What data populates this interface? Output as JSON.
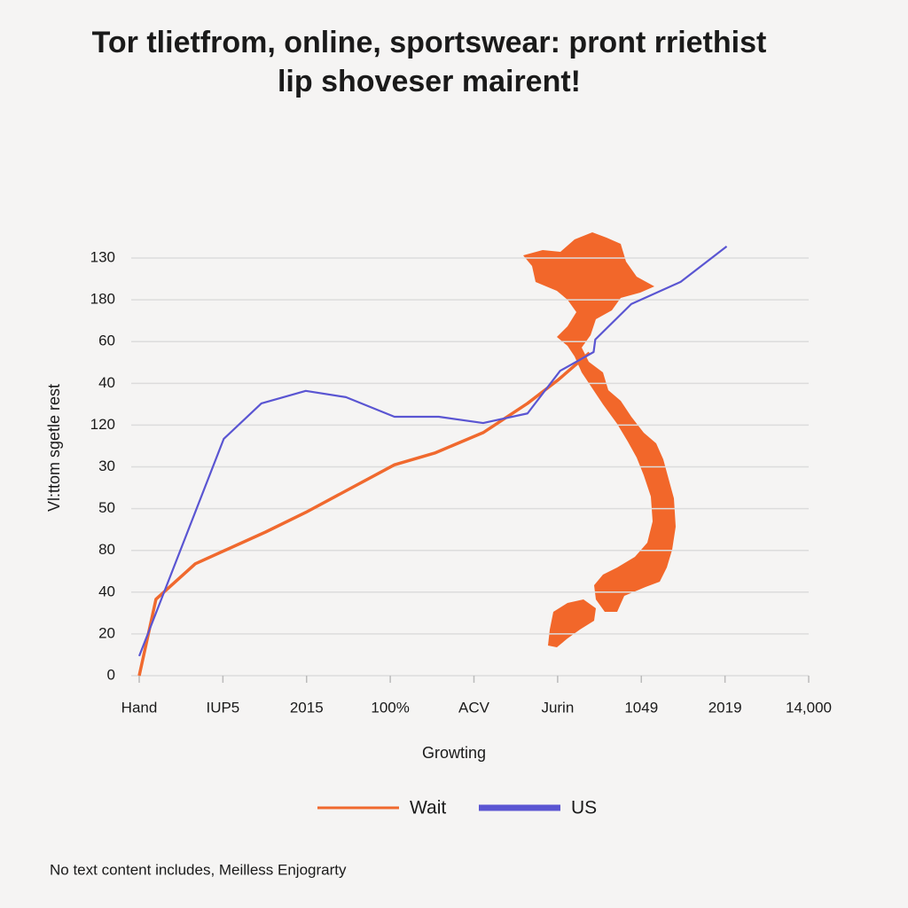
{
  "chart_data": {
    "type": "line",
    "title": [
      "Tor tlietfrom, online, sportswear: pront rriethist",
      "lip shoveser mairent!"
    ],
    "y_label": "Vl:ttom sgetle rest",
    "x_label": "Growting",
    "note": "No text content includes, Meilless Enjograrty",
    "xlim": [
      0,
      8
    ],
    "xticks": [
      {
        "value": 0,
        "label": "Hand"
      },
      {
        "value": 1,
        "label": "IUP5"
      },
      {
        "value": 2,
        "label": "2015"
      },
      {
        "value": 3,
        "label": "100%"
      },
      {
        "value": 4,
        "label": "ACV"
      },
      {
        "value": 5,
        "label": "Jurin"
      },
      {
        "value": 6,
        "label": "1049"
      },
      {
        "value": 7,
        "label": "2019"
      },
      {
        "value": 8,
        "label": "14,000"
      }
    ],
    "ylim": [
      0,
      10.5
    ],
    "yticks": [
      0,
      {
        "value": 1,
        "label": "20"
      },
      {
        "value": 2,
        "label": "40"
      },
      {
        "value": 3,
        "label": "80"
      },
      {
        "value": 4,
        "label": "50"
      },
      {
        "value": 5,
        "label": "30"
      },
      {
        "value": 6,
        "label": "120"
      },
      {
        "value": 7,
        "label": "40"
      },
      {
        "value": 8,
        "label": "60"
      },
      {
        "value": 9,
        "label": "180"
      },
      {
        "value": 10,
        "label": "130"
      }
    ],
    "grid": true,
    "series": [
      {
        "name": "Wait",
        "color": "#f0692e",
        "x": [
          0,
          0.2,
          0.67,
          1.51,
          1.99,
          3.05,
          3.53,
          4.11,
          4.64,
          5.01,
          5.38
        ],
        "values": [
          0,
          1.83,
          2.68,
          3.44,
          3.91,
          5.05,
          5.33,
          5.82,
          6.52,
          7.09,
          7.73
        ]
      },
      {
        "name": "US",
        "color": "#5a55d2",
        "x": [
          0,
          1.01,
          1.46,
          1.99,
          2.47,
          3.05,
          3.58,
          4.11,
          4.64,
          5.03,
          5.43,
          5.45,
          5.88,
          6.47,
          7.02
        ],
        "values": [
          0.47,
          5.67,
          6.52,
          6.82,
          6.67,
          6.2,
          6.2,
          6.05,
          6.28,
          7.3,
          7.75,
          8.05,
          8.9,
          9.43,
          10.28
        ]
      }
    ]
  }
}
